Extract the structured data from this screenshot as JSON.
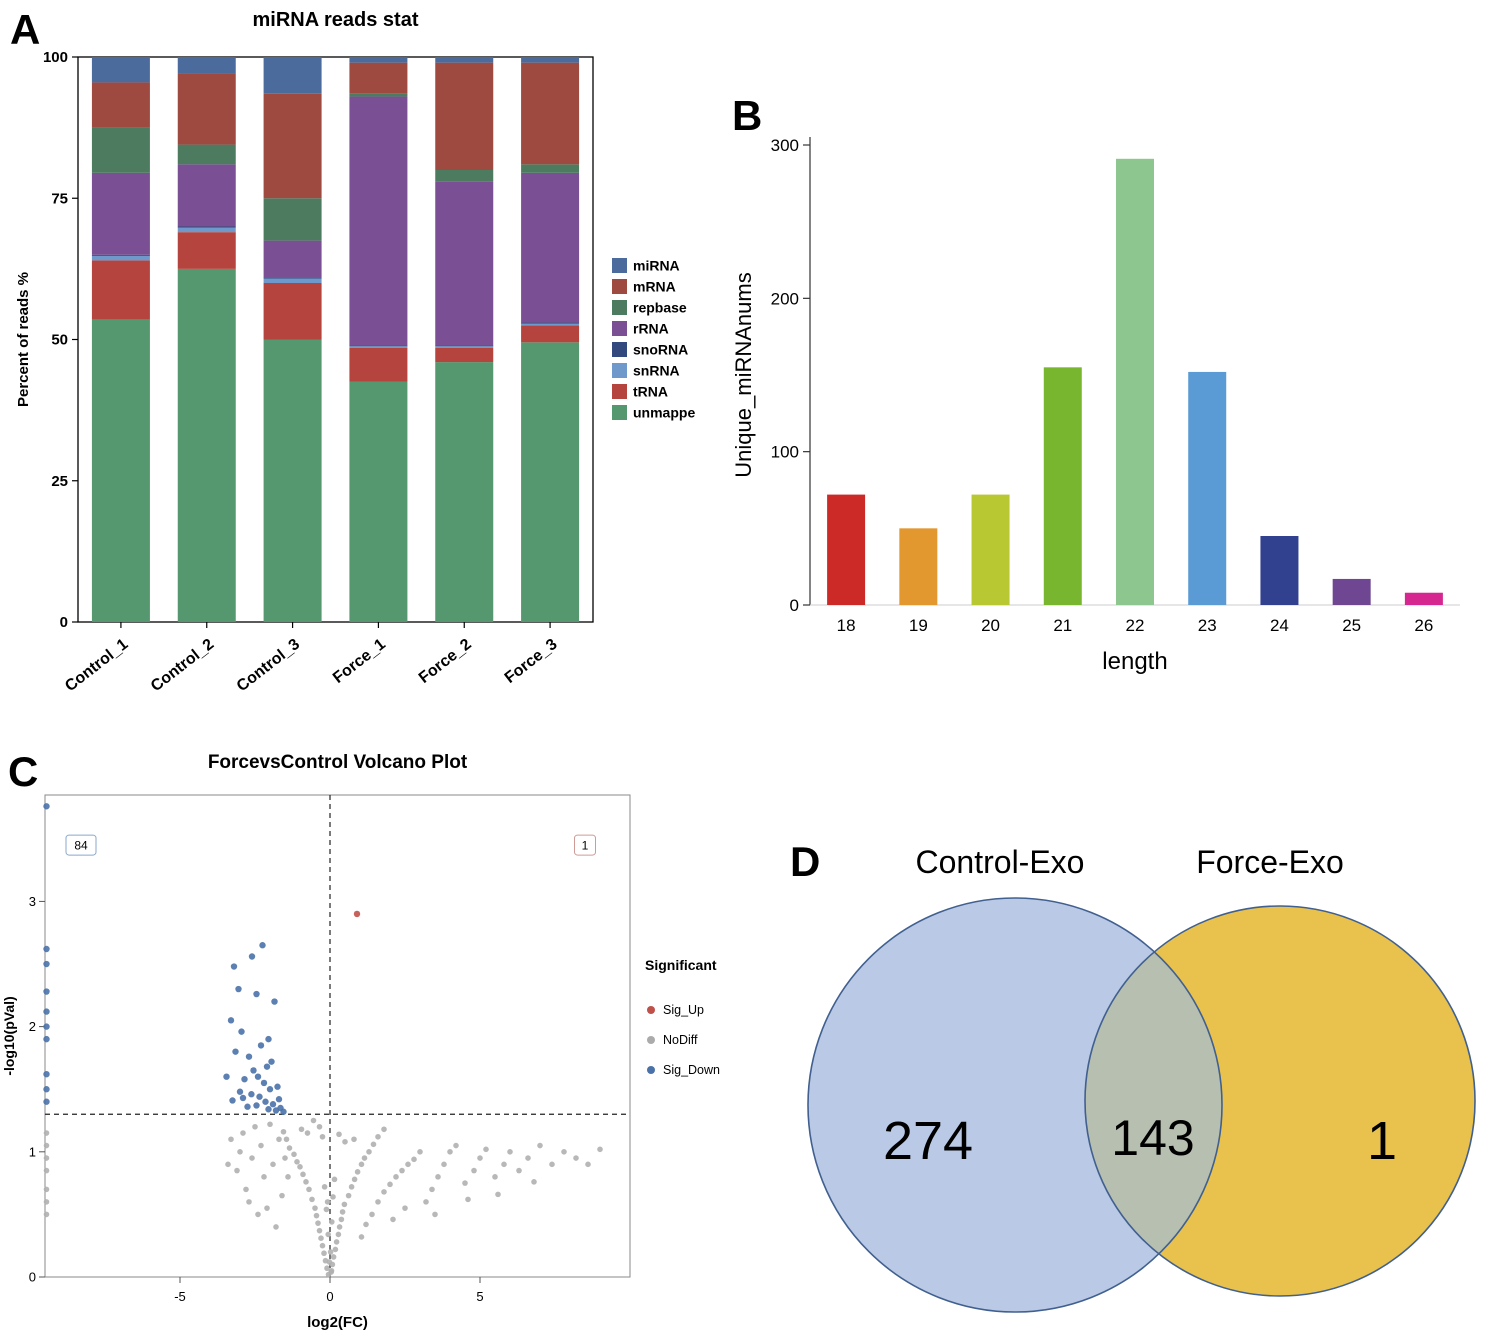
{
  "figure": {
    "panel_labels": {
      "a": "A",
      "b": "B",
      "c": "C",
      "d": "D"
    }
  },
  "chart_data": [
    {
      "id": "reads_stat",
      "type": "bar",
      "stacked": true,
      "title": "miRNA reads stat",
      "ylabel": "Percent of reads %",
      "ylim": [
        0,
        100
      ],
      "yticks": [
        0,
        25,
        50,
        75,
        100
      ],
      "categories": [
        "Control_1",
        "Control_2",
        "Control_3",
        "Force_1",
        "Force_2",
        "Force_3"
      ],
      "legend_order": [
        "miRNA",
        "mRNA",
        "repbase",
        "rRNA",
        "snoRNA",
        "snRNA",
        "tRNA",
        "unmappe"
      ],
      "series": [
        {
          "name": "unmappe",
          "color": "#55976e",
          "values": [
            53.5,
            62.5,
            50,
            42.5,
            46,
            49.5
          ]
        },
        {
          "name": "tRNA",
          "color": "#b5443e",
          "values": [
            10.5,
            6.5,
            10,
            6,
            2.5,
            3
          ]
        },
        {
          "name": "snRNA",
          "color": "#6f98cb",
          "values": [
            0.8,
            0.8,
            0.8,
            0.3,
            0.3,
            0.3
          ]
        },
        {
          "name": "snoRNA",
          "color": "#31497c",
          "values": [
            0.2,
            0.2,
            0.2,
            0.2,
            0.2,
            0.2
          ]
        },
        {
          "name": "rRNA",
          "color": "#7b4f93",
          "values": [
            14.5,
            11,
            6.5,
            44,
            29,
            26.5
          ]
        },
        {
          "name": "repbase",
          "color": "#4c7b60",
          "values": [
            8,
            3.5,
            7.5,
            0.5,
            2,
            1.5
          ]
        },
        {
          "name": "mRNA",
          "color": "#9e4a41",
          "values": [
            8,
            12.5,
            18.5,
            5.5,
            19,
            18
          ]
        },
        {
          "name": "miRNA",
          "color": "#4c6b9d",
          "values": [
            4.5,
            3,
            6.5,
            1,
            1,
            1
          ]
        }
      ]
    },
    {
      "id": "length_dist",
      "type": "bar",
      "title": "",
      "xlabel": "length",
      "ylabel": "Unique_miRNAnums",
      "ylim": [
        0,
        300
      ],
      "yticks": [
        0,
        100,
        200,
        300
      ],
      "categories": [
        "18",
        "19",
        "20",
        "21",
        "22",
        "23",
        "24",
        "25",
        "26"
      ],
      "values": [
        72,
        50,
        72,
        155,
        291,
        152,
        45,
        17,
        8
      ],
      "colors": [
        "#cc2a27",
        "#e2972f",
        "#b8c832",
        "#79b630",
        "#8ec690",
        "#5b9bd5",
        "#31408f",
        "#6f4691",
        "#d5278f"
      ]
    },
    {
      "id": "volcano",
      "type": "scatter",
      "title": "ForcevsControl Volcano Plot",
      "xlabel": "log2(FC)",
      "ylabel": "-log10(pVal)",
      "xlim": [
        -9.5,
        10
      ],
      "ylim": [
        0,
        3.85
      ],
      "xticks": [
        -5,
        0,
        5
      ],
      "yticks": [
        0,
        1,
        2,
        3
      ],
      "hline_y": 1.3,
      "vline_x": 0,
      "counts": {
        "down": {
          "label": "84",
          "x": -8.3,
          "y": 3.45,
          "color": "#8aa8cc"
        },
        "up": {
          "label": "1",
          "x": 8.5,
          "y": 3.45,
          "color": "#d09a97"
        }
      },
      "legend": {
        "title": "Significant",
        "items": [
          {
            "label": "Sig_Up",
            "color": "#c0504a"
          },
          {
            "label": "NoDiff",
            "color": "#ababab"
          },
          {
            "label": "Sig_Down",
            "color": "#4a72a8"
          }
        ]
      },
      "series": [
        {
          "name": "NoDiff",
          "color": "#b0b0b0",
          "points": [
            [
              -9.45,
              1.15
            ],
            [
              -9.45,
              1.05
            ],
            [
              -9.45,
              0.95
            ],
            [
              -9.45,
              0.85
            ],
            [
              -9.45,
              0.7
            ],
            [
              -9.45,
              0.6
            ],
            [
              -9.45,
              0.5
            ],
            [
              -0.05,
              0.02
            ],
            [
              0.04,
              0.04
            ],
            [
              -0.1,
              0.07
            ],
            [
              0.08,
              0.1
            ],
            [
              -0.15,
              0.13
            ],
            [
              0.12,
              0.16
            ],
            [
              -0.2,
              0.19
            ],
            [
              0.18,
              0.22
            ],
            [
              -0.25,
              0.25
            ],
            [
              0.22,
              0.28
            ],
            [
              -0.3,
              0.31
            ],
            [
              0.28,
              0.34
            ],
            [
              -0.35,
              0.37
            ],
            [
              0.32,
              0.4
            ],
            [
              -0.4,
              0.43
            ],
            [
              0.38,
              0.46
            ],
            [
              -0.45,
              0.49
            ],
            [
              0.42,
              0.52
            ],
            [
              -0.5,
              0.55
            ],
            [
              0.48,
              0.58
            ],
            [
              -0.06,
              0.34
            ],
            [
              0.06,
              0.44
            ],
            [
              -0.12,
              0.54
            ],
            [
              0.1,
              0.64
            ],
            [
              -0.18,
              0.72
            ],
            [
              0.15,
              0.78
            ],
            [
              -0.02,
              0.12
            ],
            [
              0.02,
              0.2
            ],
            [
              -0.08,
              0.6
            ],
            [
              0.05,
              0.05
            ],
            [
              -0.6,
              0.62
            ],
            [
              0.62,
              0.65
            ],
            [
              -0.7,
              0.7
            ],
            [
              0.72,
              0.72
            ],
            [
              -0.8,
              0.76
            ],
            [
              0.82,
              0.78
            ],
            [
              -0.9,
              0.82
            ],
            [
              0.92,
              0.84
            ],
            [
              -1.0,
              0.88
            ],
            [
              1.05,
              0.9
            ],
            [
              -1.1,
              0.92
            ],
            [
              1.15,
              0.95
            ],
            [
              -1.2,
              0.98
            ],
            [
              1.3,
              1.0
            ],
            [
              -1.35,
              1.03
            ],
            [
              1.45,
              1.06
            ],
            [
              -1.45,
              1.1
            ],
            [
              1.6,
              1.12
            ],
            [
              -1.55,
              1.16
            ],
            [
              1.8,
              1.18
            ],
            [
              -1.8,
              0.4
            ],
            [
              -2.1,
              0.55
            ],
            [
              -2.4,
              0.5
            ],
            [
              -1.6,
              0.65
            ],
            [
              -2.8,
              0.7
            ],
            [
              -2.2,
              0.8
            ],
            [
              -1.9,
              0.9
            ],
            [
              -2.6,
              0.95
            ],
            [
              -3.0,
              1.0
            ],
            [
              -2.3,
              1.05
            ],
            [
              -1.7,
              1.1
            ],
            [
              -2.9,
              1.15
            ],
            [
              -2.5,
              1.2
            ],
            [
              -3.3,
              1.1
            ],
            [
              -3.1,
              0.85
            ],
            [
              -2.0,
              1.22
            ],
            [
              -1.5,
              0.95
            ],
            [
              -1.4,
              0.8
            ],
            [
              -2.7,
              0.6
            ],
            [
              -3.4,
              0.9
            ],
            [
              1.4,
              0.5
            ],
            [
              1.6,
              0.6
            ],
            [
              1.8,
              0.68
            ],
            [
              2.0,
              0.74
            ],
            [
              2.2,
              0.8
            ],
            [
              2.4,
              0.85
            ],
            [
              2.6,
              0.9
            ],
            [
              2.8,
              0.94
            ],
            [
              3.0,
              1.0
            ],
            [
              3.2,
              0.6
            ],
            [
              3.4,
              0.7
            ],
            [
              3.6,
              0.8
            ],
            [
              3.8,
              0.9
            ],
            [
              4.0,
              1.0
            ],
            [
              4.2,
              1.05
            ],
            [
              4.5,
              0.75
            ],
            [
              4.8,
              0.85
            ],
            [
              5.0,
              0.95
            ],
            [
              5.2,
              1.02
            ],
            [
              5.5,
              0.8
            ],
            [
              5.8,
              0.9
            ],
            [
              6.0,
              1.0
            ],
            [
              6.3,
              0.85
            ],
            [
              6.6,
              0.95
            ],
            [
              7.0,
              1.05
            ],
            [
              7.4,
              0.9
            ],
            [
              7.8,
              1.0
            ],
            [
              8.2,
              0.95
            ],
            [
              8.6,
              0.9
            ],
            [
              9.0,
              1.02
            ],
            [
              2.5,
              0.55
            ],
            [
              3.5,
              0.5
            ],
            [
              4.6,
              0.62
            ],
            [
              5.6,
              0.66
            ],
            [
              1.2,
              0.42
            ],
            [
              1.05,
              0.32
            ],
            [
              2.1,
              0.46
            ],
            [
              6.8,
              0.76
            ],
            [
              -0.55,
              1.25
            ],
            [
              -0.35,
              1.2
            ],
            [
              -0.75,
              1.15
            ],
            [
              -0.25,
              1.12
            ],
            [
              0.3,
              1.14
            ],
            [
              0.5,
              1.08
            ],
            [
              -0.95,
              1.18
            ],
            [
              0.8,
              1.1
            ]
          ]
        },
        {
          "name": "Sig_Down",
          "color": "#4a72a8",
          "points": [
            [
              -3.2,
              2.48
            ],
            [
              -2.25,
              2.65
            ],
            [
              -2.6,
              2.56
            ],
            [
              -3.05,
              2.3
            ],
            [
              -2.45,
              2.26
            ],
            [
              -1.85,
              2.2
            ],
            [
              -3.3,
              2.05
            ],
            [
              -2.95,
              1.96
            ],
            [
              -2.05,
              1.9
            ],
            [
              -2.3,
              1.85
            ],
            [
              -3.15,
              1.8
            ],
            [
              -2.7,
              1.76
            ],
            [
              -1.95,
              1.72
            ],
            [
              -2.1,
              1.68
            ],
            [
              -2.55,
              1.65
            ],
            [
              -3.45,
              1.6
            ],
            [
              -2.85,
              1.58
            ],
            [
              -2.2,
              1.55
            ],
            [
              -1.75,
              1.52
            ],
            [
              -2.0,
              1.5
            ],
            [
              -3.0,
              1.48
            ],
            [
              -2.62,
              1.46
            ],
            [
              -2.35,
              1.44
            ],
            [
              -2.9,
              1.43
            ],
            [
              -3.25,
              1.41
            ],
            [
              -2.15,
              1.4
            ],
            [
              -1.9,
              1.38
            ],
            [
              -2.45,
              1.37
            ],
            [
              -2.75,
              1.36
            ],
            [
              -1.65,
              1.35
            ],
            [
              -2.05,
              1.34
            ],
            [
              -1.8,
              1.33
            ],
            [
              -1.55,
              1.32
            ],
            [
              -2.4,
              1.6
            ],
            [
              -1.7,
              1.42
            ],
            [
              -9.45,
              3.76
            ],
            [
              -9.45,
              2.62
            ],
            [
              -9.45,
              2.5
            ],
            [
              -9.45,
              2.28
            ],
            [
              -9.45,
              2.12
            ],
            [
              -9.45,
              2.0
            ],
            [
              -9.45,
              1.9
            ],
            [
              -9.45,
              1.62
            ],
            [
              -9.45,
              1.5
            ],
            [
              -9.45,
              1.4
            ]
          ]
        },
        {
          "name": "Sig_Up",
          "color": "#c0504a",
          "points": [
            [
              0.9,
              2.9
            ]
          ]
        }
      ]
    },
    {
      "id": "venn",
      "type": "venn",
      "sets": [
        {
          "label": "Control-Exo",
          "only_value": "274",
          "fill": "#b9c9e6",
          "stroke": "#41608f"
        },
        {
          "label": "Force-Exo",
          "only_value": "1",
          "fill": "#e8c24c",
          "stroke": "#41608f"
        }
      ],
      "intersection": {
        "value": "143",
        "fill": "#b7bfb0"
      }
    }
  ]
}
